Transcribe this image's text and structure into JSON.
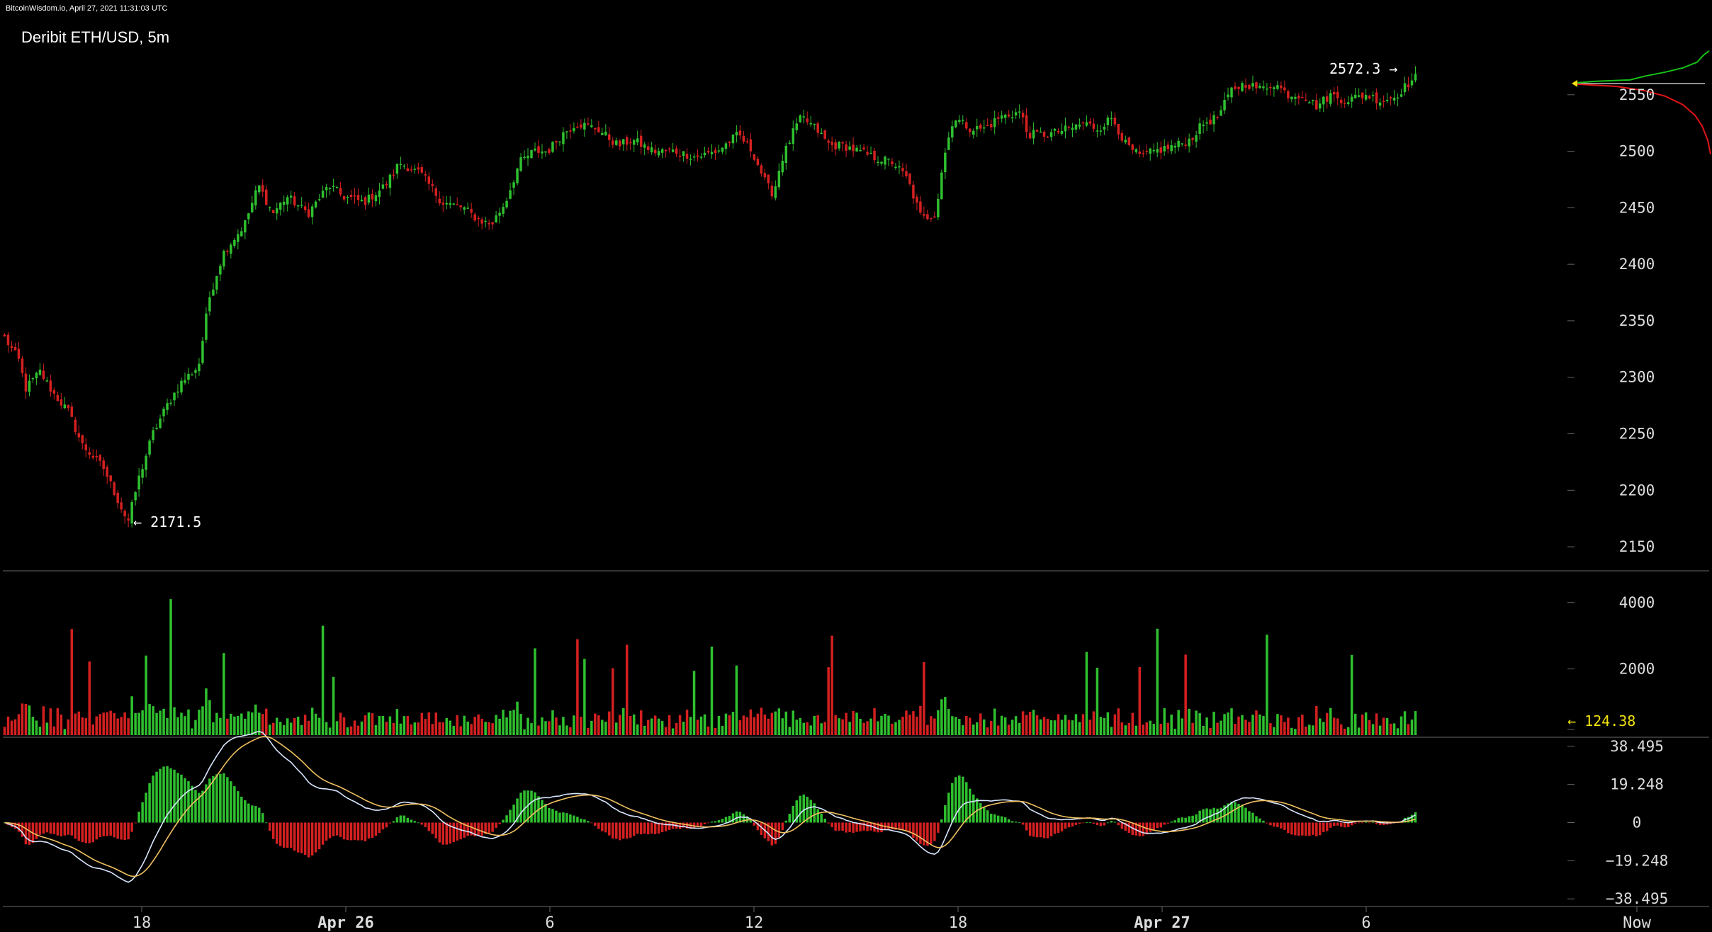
{
  "header": {
    "site": "BitcoinWisdom.io, April 27, 2021 11:31:03 UTC",
    "pair": "Deribit ETH/USD, 5m"
  },
  "chart_data": {
    "type": "candlestick",
    "title": "Deribit ETH/USD, 5m",
    "price_ticks": [
      "2550",
      "2500",
      "2450",
      "2400",
      "2350",
      "2300",
      "2250",
      "2200",
      "2150"
    ],
    "price_range": [
      2130,
      2600
    ],
    "high_label": "2572.3 →",
    "low_label": "← 2171.5",
    "price_high": 2572.3,
    "price_low": 2171.5,
    "volume_ticks": [
      "4000",
      "2000"
    ],
    "volume_range": [
      0,
      4700
    ],
    "volume_label": "← 124.38",
    "volume_last": 124.38,
    "macd_ticks": [
      "38.495",
      "19.248",
      "0",
      "−19.248",
      "−38.495"
    ],
    "macd_range": [
      -42,
      42
    ],
    "x_labels": [
      "18",
      "Apr 26",
      "6",
      "12",
      "18",
      "Apr 27",
      "6",
      "Now"
    ],
    "price_path": [
      [
        0,
        2335
      ],
      [
        0.02,
        2315
      ],
      [
        0.03,
        2290
      ],
      [
        0.05,
        2305
      ],
      [
        0.07,
        2285
      ],
      [
        0.09,
        2270
      ],
      [
        0.11,
        2240
      ],
      [
        0.14,
        2220
      ],
      [
        0.165,
        2185
      ],
      [
        0.175,
        2172
      ],
      [
        0.19,
        2210
      ],
      [
        0.21,
        2250
      ],
      [
        0.23,
        2275
      ],
      [
        0.25,
        2295
      ],
      [
        0.275,
        2310
      ],
      [
        0.29,
        2370
      ],
      [
        0.31,
        2410
      ],
      [
        0.34,
        2435
      ],
      [
        0.36,
        2470
      ],
      [
        0.38,
        2445
      ],
      [
        0.4,
        2460
      ],
      [
        0.43,
        2445
      ],
      [
        0.46,
        2470
      ],
      [
        0.48,
        2460
      ],
      [
        0.51,
        2455
      ],
      [
        0.54,
        2470
      ],
      [
        0.56,
        2490
      ],
      [
        0.59,
        2480
      ],
      [
        0.62,
        2455
      ],
      [
        0.65,
        2450
      ],
      [
        0.67,
        2440
      ],
      [
        0.69,
        2435
      ],
      [
        0.71,
        2455
      ],
      [
        0.73,
        2490
      ],
      [
        0.75,
        2500
      ],
      [
        0.77,
        2500
      ],
      [
        0.79,
        2515
      ],
      [
        0.81,
        2525
      ],
      [
        0.84,
        2520
      ],
      [
        0.87,
        2505
      ],
      [
        0.89,
        2510
      ],
      [
        0.92,
        2500
      ],
      [
        0.95,
        2500
      ],
      [
        0.98,
        2495
      ],
      [
        1.01,
        2500
      ],
      [
        1.04,
        2515
      ],
      [
        1.06,
        2500
      ],
      [
        1.08,
        2470
      ],
      [
        1.09,
        2462
      ],
      [
        1.1,
        2490
      ],
      [
        1.12,
        2520
      ],
      [
        1.13,
        2530
      ],
      [
        1.15,
        2520
      ],
      [
        1.17,
        2505
      ],
      [
        1.19,
        2505
      ],
      [
        1.21,
        2500
      ],
      [
        1.23,
        2495
      ],
      [
        1.26,
        2490
      ],
      [
        1.28,
        2475
      ],
      [
        1.3,
        2440
      ],
      [
        1.32,
        2445
      ],
      [
        1.33,
        2490
      ],
      [
        1.345,
        2530
      ],
      [
        1.37,
        2520
      ],
      [
        1.39,
        2520
      ],
      [
        1.41,
        2530
      ],
      [
        1.44,
        2535
      ],
      [
        1.45,
        2515
      ],
      [
        1.48,
        2515
      ],
      [
        1.51,
        2520
      ],
      [
        1.53,
        2525
      ],
      [
        1.55,
        2520
      ],
      [
        1.57,
        2530
      ],
      [
        1.59,
        2505
      ],
      [
        1.61,
        2495
      ],
      [
        1.63,
        2500
      ],
      [
        1.66,
        2505
      ],
      [
        1.68,
        2510
      ],
      [
        1.7,
        2525
      ],
      [
        1.72,
        2530
      ],
      [
        1.74,
        2555
      ],
      [
        1.76,
        2560
      ],
      [
        1.78,
        2555
      ],
      [
        1.8,
        2560
      ],
      [
        1.82,
        2550
      ],
      [
        1.84,
        2550
      ],
      [
        1.86,
        2540
      ],
      [
        1.88,
        2550
      ],
      [
        1.9,
        2545
      ],
      [
        1.93,
        2550
      ],
      [
        1.95,
        2545
      ],
      [
        1.97,
        2548
      ],
      [
        1.99,
        2560
      ],
      [
        2.0,
        2565
      ]
    ]
  },
  "colors": {
    "up": "#2fc02f",
    "down": "#d42020",
    "bid": "#17c017",
    "ask": "#e01414",
    "accent": "#f0e010",
    "grid": "#444444"
  }
}
